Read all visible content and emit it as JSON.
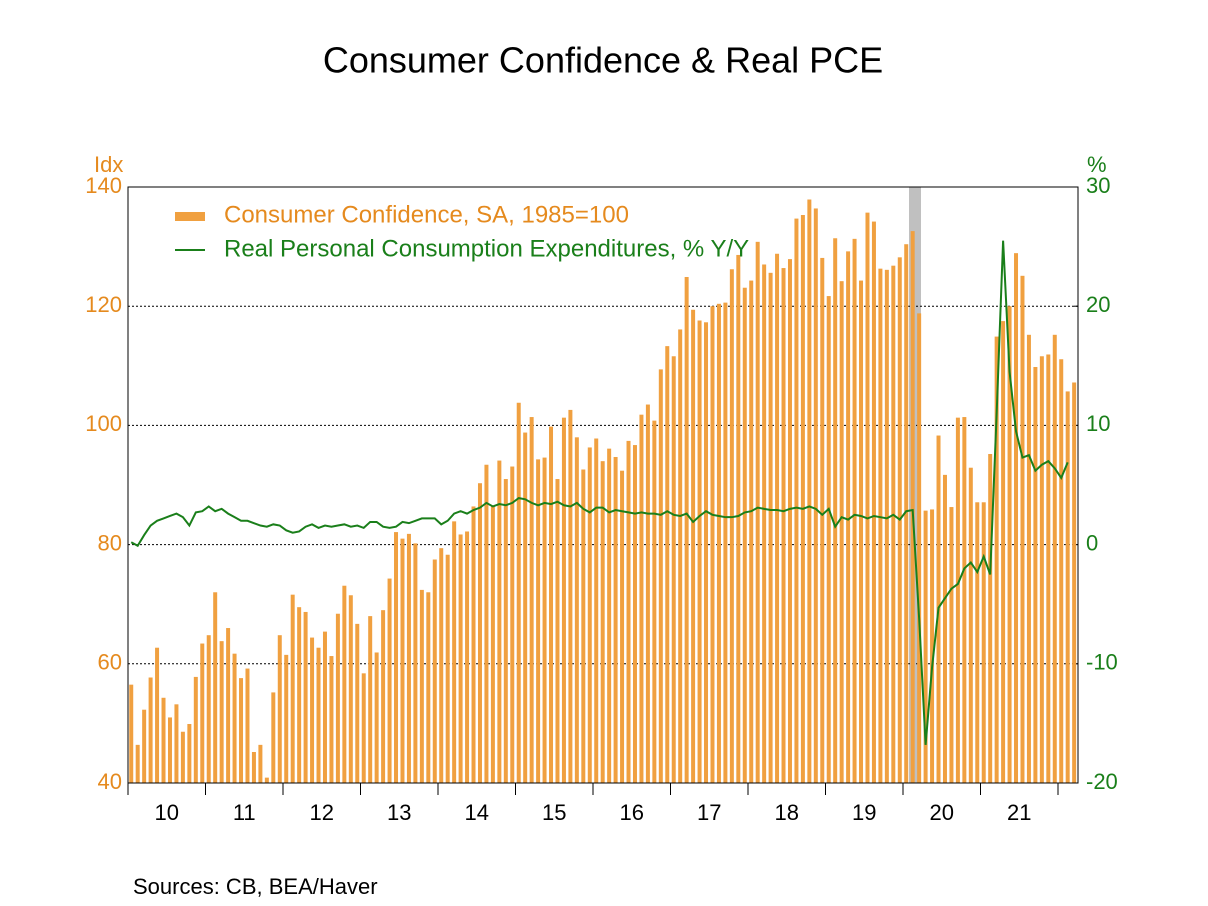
{
  "chart_data": {
    "type": "bar",
    "title": "Consumer Confidence & Real PCE",
    "y_label": "Idx",
    "y2_label": "%",
    "source": "Sources:  CB, BEA/Haver",
    "x_labels": [
      "10",
      "11",
      "12",
      "13",
      "14",
      "15",
      "16",
      "17",
      "18",
      "19",
      "20",
      "21"
    ],
    "ylim": [
      40,
      140
    ],
    "yticks": [
      40,
      60,
      80,
      100,
      120,
      140
    ],
    "y2lim": [
      -20,
      30
    ],
    "y2ticks": [
      -20,
      -10,
      0,
      10,
      20,
      30
    ],
    "grid": true,
    "series": [
      {
        "name": "Consumer Confidence, SA, 1985=100",
        "type": "bar",
        "color": "#f0a040",
        "values": [
          56.5,
          46.4,
          52.3,
          57.7,
          62.7,
          54.3,
          51.0,
          53.2,
          48.6,
          49.9,
          57.8,
          63.4,
          64.8,
          72.0,
          63.8,
          66.0,
          61.7,
          57.6,
          59.2,
          45.2,
          46.4,
          40.9,
          55.2,
          64.8,
          61.5,
          71.6,
          69.5,
          68.7,
          64.4,
          62.7,
          65.4,
          61.3,
          68.4,
          73.1,
          71.5,
          66.7,
          58.4,
          68.0,
          61.9,
          69.0,
          74.3,
          82.1,
          81.0,
          81.8,
          80.2,
          72.4,
          72.0,
          77.5,
          79.4,
          78.3,
          83.9,
          81.7,
          82.2,
          86.4,
          90.3,
          93.4,
          86.4,
          94.1,
          91.0,
          93.1,
          103.8,
          98.8,
          101.4,
          94.3,
          94.6,
          99.8,
          91.0,
          101.3,
          102.6,
          98.0,
          92.6,
          96.3,
          97.8,
          94.0,
          96.1,
          94.7,
          92.4,
          97.4,
          96.7,
          101.8,
          103.5,
          100.8,
          109.4,
          113.3,
          111.6,
          116.1,
          124.9,
          119.4,
          117.6,
          117.3,
          120.0,
          120.4,
          120.6,
          126.2,
          128.6,
          123.1,
          124.3,
          130.8,
          127.0,
          125.6,
          128.8,
          126.4,
          127.9,
          134.7,
          135.3,
          137.9,
          136.4,
          128.1,
          121.7,
          131.4,
          124.2,
          129.2,
          131.3,
          124.3,
          135.7,
          134.2,
          126.3,
          126.1,
          126.8,
          128.2,
          130.4,
          132.6,
          118.8,
          85.7,
          85.9,
          98.3,
          91.7,
          86.3,
          101.3,
          101.4,
          92.9,
          87.1,
          87.1,
          95.2,
          114.9,
          117.5,
          120.0,
          128.9,
          125.1,
          115.2,
          109.8,
          111.6,
          111.9,
          115.2,
          111.1,
          105.7,
          107.2
        ]
      },
      {
        "name": "Real Personal Consumption Expenditures, % Y/Y",
        "type": "line",
        "axis": "y2",
        "color": "#1a7f1a",
        "values": [
          0.2,
          -0.1,
          0.8,
          1.6,
          2.0,
          2.2,
          2.4,
          2.6,
          2.3,
          1.6,
          2.7,
          2.8,
          3.2,
          2.8,
          3.0,
          2.6,
          2.3,
          2.0,
          2.0,
          1.8,
          1.6,
          1.5,
          1.7,
          1.6,
          1.2,
          1.0,
          1.1,
          1.5,
          1.7,
          1.4,
          1.6,
          1.5,
          1.6,
          1.7,
          1.5,
          1.6,
          1.4,
          1.9,
          1.9,
          1.5,
          1.4,
          1.5,
          1.9,
          1.8,
          2.0,
          2.2,
          2.2,
          2.2,
          1.7,
          2.0,
          2.6,
          2.8,
          2.6,
          2.9,
          3.1,
          3.5,
          3.2,
          3.4,
          3.3,
          3.5,
          3.9,
          3.8,
          3.5,
          3.3,
          3.5,
          3.4,
          3.6,
          3.3,
          3.2,
          3.5,
          3.0,
          2.7,
          3.1,
          3.1,
          2.7,
          2.9,
          2.8,
          2.7,
          2.6,
          2.7,
          2.6,
          2.6,
          2.5,
          2.8,
          2.5,
          2.4,
          2.6,
          1.9,
          2.4,
          2.8,
          2.5,
          2.4,
          2.3,
          2.3,
          2.4,
          2.7,
          2.8,
          3.1,
          3.0,
          2.9,
          2.9,
          2.8,
          3.0,
          3.1,
          3.0,
          3.2,
          3.0,
          2.5,
          3.0,
          1.5,
          2.3,
          2.1,
          2.5,
          2.4,
          2.2,
          2.4,
          2.3,
          2.2,
          2.5,
          2.1,
          2.8,
          2.9,
          -6.2,
          -16.8,
          -10.3,
          -5.3,
          -4.5,
          -3.7,
          -3.3,
          -2.0,
          -1.5,
          -2.3,
          -1.0,
          -2.5,
          11.0,
          25.5,
          14.5,
          9.5,
          7.3,
          7.5,
          6.2,
          6.7,
          7.0,
          6.4,
          5.6,
          6.9,
          null
        ]
      }
    ]
  }
}
